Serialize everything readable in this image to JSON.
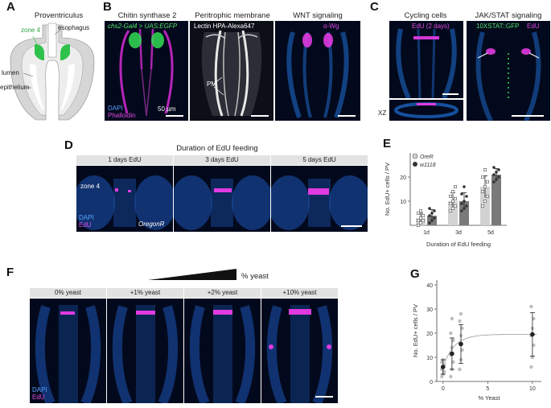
{
  "panels": {
    "A": {
      "letter": "A",
      "title": "Proventriculus",
      "labels": {
        "zone": "zone 4",
        "esophagus": "esophagus",
        "lumen": "lumen",
        "epithelium": "epithelium"
      }
    },
    "B": {
      "letter": "B",
      "titles": [
        "Chitin synthase 2",
        "Peritrophic membrane",
        "WNT signaling"
      ],
      "img1_top": "chs2-Gal4 > UAS:EGFP",
      "img1_bottom_1": "DAPI",
      "img1_bottom_2": "Phalloidin",
      "img2_top": "Lectin HPA-Alexa647",
      "img2_pm": "PM",
      "img3_top": "α-Wg",
      "scale": "50 µm"
    },
    "C": {
      "letter": "C",
      "titles": [
        "Cycling cells",
        "JAK/STAT signaling"
      ],
      "img1_top": "EdU (2 days)",
      "xz": "XZ",
      "img2_top_1": "10XSTAT::GFP",
      "img2_top_2": "EdU"
    },
    "D": {
      "letter": "D",
      "title": "Duration of EdU feeding",
      "captions": [
        "1 days EdU",
        "3 days EdU",
        "5 days EdU"
      ],
      "zone": "zone 4",
      "dapi": "DAPI",
      "edu": "EdU",
      "strain": "OregonR"
    },
    "E": {
      "letter": "E"
    },
    "F": {
      "letter": "F",
      "title": "% yeast",
      "captions": [
        "0% yeast",
        "+1% yeast",
        "+2% yeast",
        "+10% yeast"
      ],
      "dapi": "DAPI",
      "edu": "EdU"
    },
    "G": {
      "letter": "G"
    }
  },
  "chart_data": [
    {
      "type": "bar",
      "panel": "E",
      "categories": [
        "1d",
        "3d",
        "5d"
      ],
      "series": [
        {
          "name": "OreR",
          "values": [
            3,
            10,
            16
          ],
          "sd": [
            2,
            3.5,
            4.5
          ],
          "points": [
            [
              0,
              1,
              2,
              2,
              3,
              4,
              5,
              6
            ],
            [
              6,
              7,
              8,
              9,
              10,
              11,
              12,
              14,
              16
            ],
            [
              8,
              10,
              12,
              14,
              16,
              18,
              20,
              23
            ]
          ]
        },
        {
          "name": "w1118",
          "values": [
            4,
            10,
            21
          ],
          "sd": [
            2.5,
            3.5,
            2.5
          ],
          "points": [
            [
              1,
              2,
              3,
              4,
              5,
              6,
              7
            ],
            [
              6,
              7,
              8,
              9,
              10,
              12,
              13,
              16
            ],
            [
              18,
              19,
              20,
              21,
              22,
              23,
              24
            ]
          ]
        }
      ],
      "xlabel": "Duration of EdU feeding",
      "ylabel": "No. EdU+ cells / PV",
      "ylim": [
        0,
        30
      ],
      "yticks": [
        10,
        20
      ],
      "colors": {
        "OreR": "#d2d2d2",
        "w1118": "#7a7a7a"
      }
    },
    {
      "type": "scatter",
      "panel": "G",
      "x": [
        0,
        1,
        2,
        10
      ],
      "means": [
        6,
        11.5,
        15.5,
        19.5
      ],
      "sd": [
        3,
        6.5,
        8,
        9
      ],
      "points": [
        [
          2,
          3,
          4,
          5,
          6,
          7,
          8,
          9
        ],
        [
          2,
          5,
          8,
          11,
          14,
          17,
          20,
          26
        ],
        [
          5,
          9,
          13,
          16,
          19,
          22,
          25,
          28
        ],
        [
          6,
          10,
          15,
          19,
          22,
          26,
          31
        ]
      ],
      "fit": {
        "type": "saturating",
        "plateau": 19.5,
        "base": 6,
        "k": 0.8
      },
      "xlabel": "% Yeast",
      "ylabel": "No. EdU+ cells / PV",
      "xlim": [
        -0.7,
        11
      ],
      "ylim": [
        0,
        42
      ],
      "xticks": [
        0,
        5,
        10
      ],
      "yticks": [
        0,
        10,
        20,
        30,
        40
      ]
    }
  ]
}
